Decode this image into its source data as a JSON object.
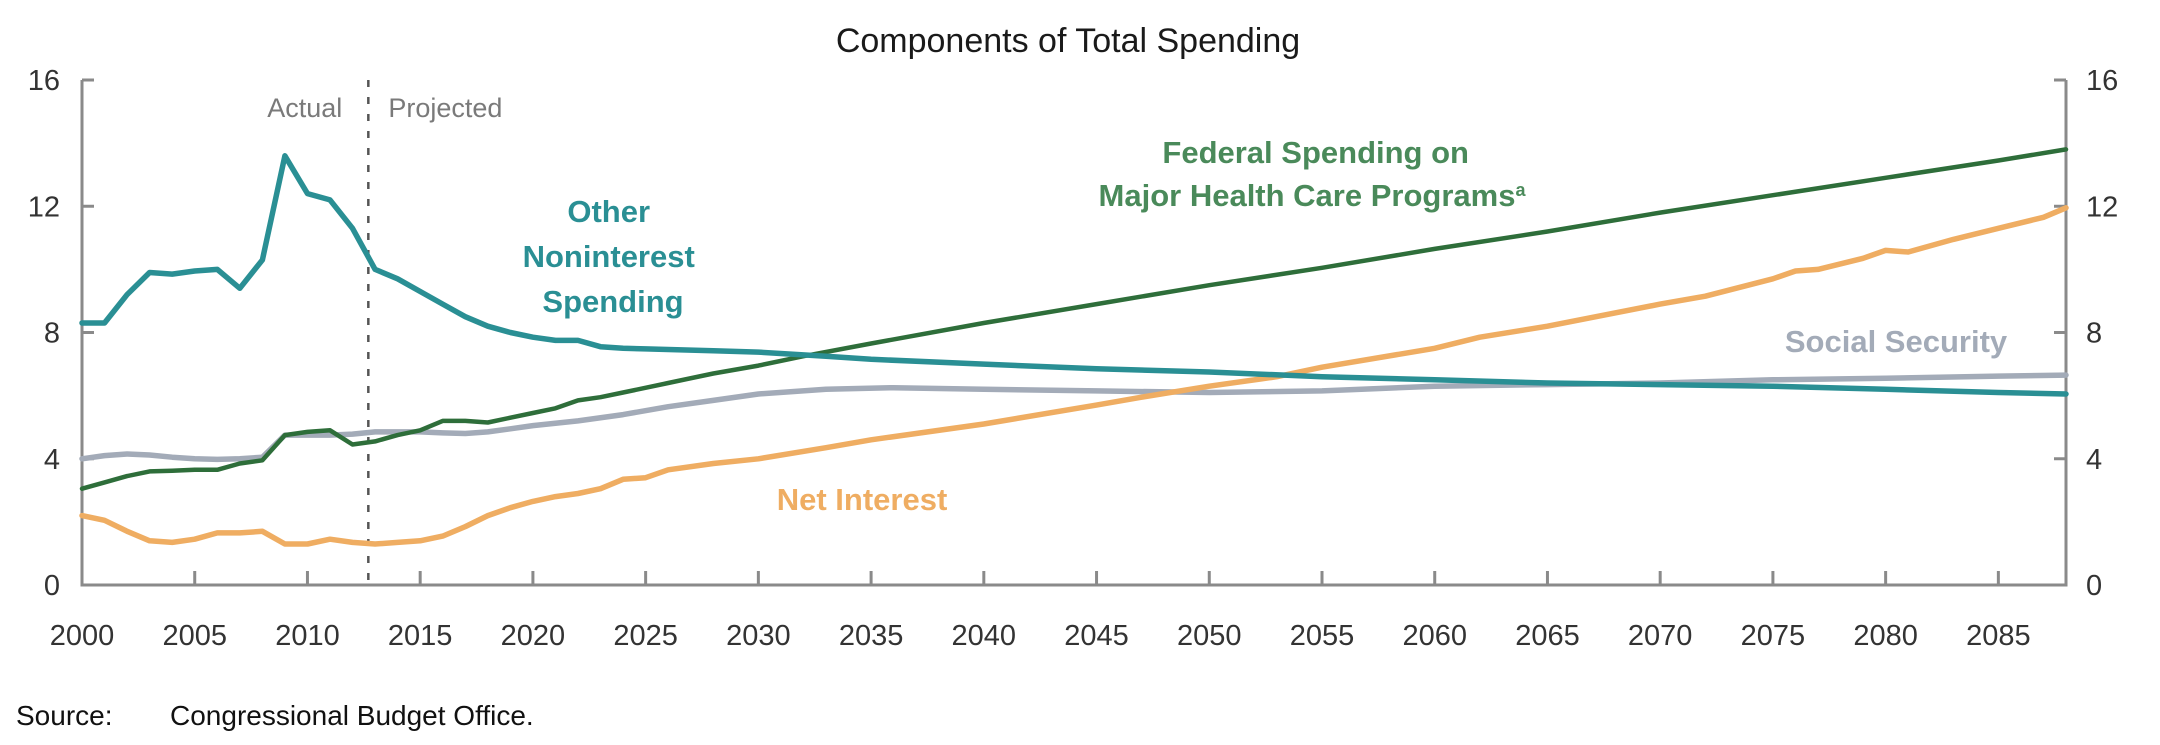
{
  "chart_data": {
    "type": "line",
    "title": "Components of Total Spending",
    "xlabel": "",
    "ylabel": "",
    "xlim": [
      2000,
      2088
    ],
    "ylim": [
      0,
      16
    ],
    "x_ticks": [
      2000,
      2005,
      2010,
      2015,
      2020,
      2025,
      2030,
      2035,
      2040,
      2045,
      2050,
      2055,
      2060,
      2065,
      2070,
      2075,
      2080,
      2085
    ],
    "y_ticks": [
      0,
      4,
      8,
      12,
      16
    ],
    "y_axis_sides": [
      "left",
      "right"
    ],
    "grid": false,
    "legend": "inline labels",
    "divider": {
      "x": 2012.7,
      "left_label": "Actual",
      "right_label": "Projected",
      "style": "dashed"
    },
    "series": [
      {
        "name": "Other Noninterest Spending",
        "label_lines": [
          "Other",
          "Noninterest",
          "Spending"
        ],
        "color": "#2a8f94",
        "points": [
          [
            2000,
            8.3
          ],
          [
            2001,
            8.3
          ],
          [
            2002,
            9.2
          ],
          [
            2003,
            9.9
          ],
          [
            2004,
            9.85
          ],
          [
            2005,
            9.95
          ],
          [
            2006,
            10.0
          ],
          [
            2007,
            9.4
          ],
          [
            2008,
            10.3
          ],
          [
            2009,
            13.6
          ],
          [
            2010,
            12.4
          ],
          [
            2011,
            12.2
          ],
          [
            2012,
            11.3
          ],
          [
            2013,
            10.0
          ],
          [
            2014,
            9.7
          ],
          [
            2015,
            9.3
          ],
          [
            2016,
            8.9
          ],
          [
            2017,
            8.5
          ],
          [
            2018,
            8.2
          ],
          [
            2019,
            8.0
          ],
          [
            2020,
            7.85
          ],
          [
            2021,
            7.75
          ],
          [
            2022,
            7.75
          ],
          [
            2023,
            7.55
          ],
          [
            2024,
            7.5
          ],
          [
            2025,
            7.48
          ],
          [
            2028,
            7.42
          ],
          [
            2030,
            7.38
          ],
          [
            2033,
            7.25
          ],
          [
            2035,
            7.15
          ],
          [
            2040,
            7.0
          ],
          [
            2045,
            6.85
          ],
          [
            2050,
            6.75
          ],
          [
            2055,
            6.6
          ],
          [
            2060,
            6.5
          ],
          [
            2065,
            6.4
          ],
          [
            2070,
            6.35
          ],
          [
            2075,
            6.3
          ],
          [
            2080,
            6.2
          ],
          [
            2085,
            6.1
          ],
          [
            2088,
            6.05
          ]
        ]
      },
      {
        "name": "Federal Spending on Major Health Care Programs",
        "label_lines": [
          "Federal Spending on",
          "Major Health Care Programs"
        ],
        "label_footnote": "a",
        "color": "#2e6e3a",
        "points": [
          [
            2000,
            3.05
          ],
          [
            2001,
            3.25
          ],
          [
            2002,
            3.45
          ],
          [
            2003,
            3.6
          ],
          [
            2004,
            3.62
          ],
          [
            2005,
            3.65
          ],
          [
            2006,
            3.65
          ],
          [
            2007,
            3.85
          ],
          [
            2008,
            3.95
          ],
          [
            2009,
            4.75
          ],
          [
            2010,
            4.85
          ],
          [
            2011,
            4.9
          ],
          [
            2012,
            4.45
          ],
          [
            2013,
            4.55
          ],
          [
            2014,
            4.75
          ],
          [
            2015,
            4.9
          ],
          [
            2016,
            5.2
          ],
          [
            2017,
            5.2
          ],
          [
            2018,
            5.15
          ],
          [
            2019,
            5.3
          ],
          [
            2020,
            5.45
          ],
          [
            2021,
            5.6
          ],
          [
            2022,
            5.85
          ],
          [
            2023,
            5.95
          ],
          [
            2024,
            6.1
          ],
          [
            2026,
            6.4
          ],
          [
            2028,
            6.7
          ],
          [
            2030,
            6.95
          ],
          [
            2032,
            7.25
          ],
          [
            2035,
            7.65
          ],
          [
            2040,
            8.3
          ],
          [
            2045,
            8.9
          ],
          [
            2050,
            9.5
          ],
          [
            2055,
            10.05
          ],
          [
            2060,
            10.65
          ],
          [
            2065,
            11.2
          ],
          [
            2070,
            11.8
          ],
          [
            2075,
            12.35
          ],
          [
            2080,
            12.9
          ],
          [
            2085,
            13.45
          ],
          [
            2088,
            13.8
          ]
        ]
      },
      {
        "name": "Social Security",
        "label_lines": [
          "Social Security"
        ],
        "color": "#a3abb8",
        "points": [
          [
            2000,
            4.0
          ],
          [
            2001,
            4.1
          ],
          [
            2002,
            4.15
          ],
          [
            2003,
            4.12
          ],
          [
            2004,
            4.05
          ],
          [
            2005,
            4.0
          ],
          [
            2006,
            3.98
          ],
          [
            2007,
            4.0
          ],
          [
            2008,
            4.05
          ],
          [
            2009,
            4.75
          ],
          [
            2010,
            4.75
          ],
          [
            2011,
            4.75
          ],
          [
            2012,
            4.78
          ],
          [
            2013,
            4.85
          ],
          [
            2014,
            4.85
          ],
          [
            2015,
            4.85
          ],
          [
            2016,
            4.82
          ],
          [
            2017,
            4.8
          ],
          [
            2018,
            4.85
          ],
          [
            2019,
            4.95
          ],
          [
            2020,
            5.05
          ],
          [
            2022,
            5.2
          ],
          [
            2024,
            5.4
          ],
          [
            2026,
            5.65
          ],
          [
            2028,
            5.85
          ],
          [
            2030,
            6.05
          ],
          [
            2033,
            6.2
          ],
          [
            2036,
            6.25
          ],
          [
            2040,
            6.2
          ],
          [
            2045,
            6.15
          ],
          [
            2050,
            6.1
          ],
          [
            2055,
            6.15
          ],
          [
            2060,
            6.3
          ],
          [
            2065,
            6.35
          ],
          [
            2070,
            6.4
          ],
          [
            2075,
            6.5
          ],
          [
            2080,
            6.55
          ],
          [
            2085,
            6.62
          ],
          [
            2088,
            6.65
          ]
        ]
      },
      {
        "name": "Net Interest",
        "label_lines": [
          "Net Interest"
        ],
        "color": "#efad62",
        "points": [
          [
            2000,
            2.2
          ],
          [
            2001,
            2.05
          ],
          [
            2002,
            1.7
          ],
          [
            2003,
            1.4
          ],
          [
            2004,
            1.35
          ],
          [
            2005,
            1.45
          ],
          [
            2006,
            1.65
          ],
          [
            2007,
            1.65
          ],
          [
            2008,
            1.7
          ],
          [
            2009,
            1.3
          ],
          [
            2010,
            1.3
          ],
          [
            2011,
            1.45
          ],
          [
            2012,
            1.35
          ],
          [
            2013,
            1.3
          ],
          [
            2014,
            1.35
          ],
          [
            2015,
            1.4
          ],
          [
            2016,
            1.55
          ],
          [
            2017,
            1.85
          ],
          [
            2018,
            2.2
          ],
          [
            2019,
            2.45
          ],
          [
            2020,
            2.65
          ],
          [
            2021,
            2.8
          ],
          [
            2022,
            2.9
          ],
          [
            2023,
            3.05
          ],
          [
            2024,
            3.35
          ],
          [
            2025,
            3.4
          ],
          [
            2026,
            3.65
          ],
          [
            2028,
            3.85
          ],
          [
            2030,
            4.0
          ],
          [
            2033,
            4.35
          ],
          [
            2035,
            4.6
          ],
          [
            2040,
            5.1
          ],
          [
            2045,
            5.7
          ],
          [
            2047,
            5.95
          ],
          [
            2050,
            6.3
          ],
          [
            2053,
            6.6
          ],
          [
            2055,
            6.9
          ],
          [
            2060,
            7.5
          ],
          [
            2062,
            7.85
          ],
          [
            2065,
            8.2
          ],
          [
            2070,
            8.9
          ],
          [
            2072,
            9.15
          ],
          [
            2075,
            9.7
          ],
          [
            2076,
            9.95
          ],
          [
            2077,
            10.0
          ],
          [
            2079,
            10.35
          ],
          [
            2080,
            10.6
          ],
          [
            2081,
            10.55
          ],
          [
            2083,
            10.95
          ],
          [
            2085,
            11.3
          ],
          [
            2087,
            11.65
          ],
          [
            2088,
            11.95
          ]
        ]
      }
    ]
  },
  "footer": {
    "source_label": "Source:",
    "source_text": "Congressional Budget Office."
  }
}
